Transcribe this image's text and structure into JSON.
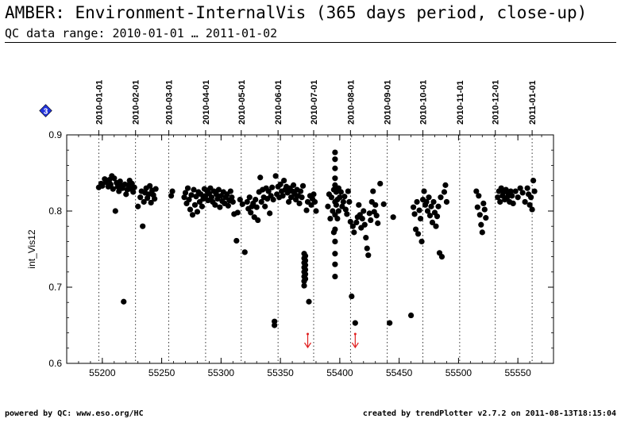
{
  "header": {
    "title": "AMBER: Environment-InternalVis (365 days period, close-up)",
    "subtitle": "QC data range: 2010-01-01 … 2011-01-02"
  },
  "footer": {
    "left": "powered by QC: www.eso.org/HC",
    "right": "created by trendPlotter v2.7.2 on 2011-08-13T18:15:04"
  },
  "badge": {
    "label": "3",
    "color": "#2233dd"
  },
  "chart_data": {
    "type": "scatter",
    "ylabel": "int_Vis12",
    "xlim": [
      55170,
      55580
    ],
    "ylim": [
      0.6,
      0.9
    ],
    "x_ticks": [
      55200,
      55250,
      55300,
      55350,
      55400,
      55450,
      55500,
      55550
    ],
    "y_ticks": [
      0.6,
      0.7,
      0.8,
      0.9
    ],
    "grid": "vertical month markers (dotted)",
    "date_markers": [
      {
        "label": "2010-01-01",
        "x": 55197
      },
      {
        "label": "2010-02-01",
        "x": 55228
      },
      {
        "label": "2010-03-01",
        "x": 55256
      },
      {
        "label": "2010-04-01",
        "x": 55287
      },
      {
        "label": "2010-05-01",
        "x": 55317
      },
      {
        "label": "2010-06-01",
        "x": 55348
      },
      {
        "label": "2010-07-01",
        "x": 55378
      },
      {
        "label": "2010-08-01",
        "x": 55409
      },
      {
        "label": "2010-09-01",
        "x": 55440
      },
      {
        "label": "2010-10-01",
        "x": 55470
      },
      {
        "label": "2010-11-01",
        "x": 55501
      },
      {
        "label": "2010-12-01",
        "x": 55531
      },
      {
        "label": "2011-01-01",
        "x": 55562
      }
    ],
    "outlier_arrows": {
      "color": "#e02020",
      "x": [
        55373,
        55413
      ]
    },
    "series": [
      {
        "marker_color": "#000000",
        "points": [
          [
            55197,
            0.831
          ],
          [
            55199,
            0.836
          ],
          [
            55200,
            0.833
          ],
          [
            55202,
            0.842
          ],
          [
            55203,
            0.838
          ],
          [
            55205,
            0.832
          ],
          [
            55206,
            0.841
          ],
          [
            55207,
            0.835
          ],
          [
            55208,
            0.846
          ],
          [
            55209,
            0.829
          ],
          [
            55210,
            0.843
          ],
          [
            55211,
            0.8
          ],
          [
            55212,
            0.837
          ],
          [
            55213,
            0.832
          ],
          [
            55214,
            0.826
          ],
          [
            55215,
            0.839
          ],
          [
            55216,
            0.833
          ],
          [
            55217,
            0.83
          ],
          [
            55218,
            0.681
          ],
          [
            55219,
            0.835
          ],
          [
            55220,
            0.822
          ],
          [
            55221,
            0.828
          ],
          [
            55222,
            0.834
          ],
          [
            55223,
            0.84
          ],
          [
            55224,
            0.829
          ],
          [
            55225,
            0.836
          ],
          [
            55226,
            0.825
          ],
          [
            55227,
            0.831
          ],
          [
            55230,
            0.806
          ],
          [
            55232,
            0.818
          ],
          [
            55233,
            0.826
          ],
          [
            55234,
            0.78
          ],
          [
            55235,
            0.812
          ],
          [
            55236,
            0.824
          ],
          [
            55237,
            0.83
          ],
          [
            55238,
            0.817
          ],
          [
            55239,
            0.822
          ],
          [
            55240,
            0.833
          ],
          [
            55241,
            0.811
          ],
          [
            55242,
            0.827
          ],
          [
            55243,
            0.821
          ],
          [
            55244,
            0.816
          ],
          [
            55245,
            0.829
          ],
          [
            55258,
            0.82
          ],
          [
            55259,
            0.826
          ],
          [
            55269,
            0.818
          ],
          [
            55270,
            0.824
          ],
          [
            55271,
            0.81
          ],
          [
            55272,
            0.83
          ],
          [
            55273,
            0.815
          ],
          [
            55274,
            0.802
          ],
          [
            55275,
            0.821
          ],
          [
            55276,
            0.795
          ],
          [
            55277,
            0.828
          ],
          [
            55278,
            0.808
          ],
          [
            55279,
            0.819
          ],
          [
            55280,
            0.799
          ],
          [
            55281,
            0.825
          ],
          [
            55282,
            0.812
          ],
          [
            55283,
            0.822
          ],
          [
            55284,
            0.806
          ],
          [
            55285,
            0.816
          ],
          [
            55286,
            0.829
          ],
          [
            55287,
            0.82
          ],
          [
            55288,
            0.827
          ],
          [
            55289,
            0.814
          ],
          [
            55290,
            0.823
          ],
          [
            55291,
            0.83
          ],
          [
            55292,
            0.818
          ],
          [
            55293,
            0.812
          ],
          [
            55294,
            0.826
          ],
          [
            55295,
            0.808
          ],
          [
            55296,
            0.822
          ],
          [
            55297,
            0.816
          ],
          [
            55298,
            0.828
          ],
          [
            55299,
            0.805
          ],
          [
            55300,
            0.82
          ],
          [
            55301,
            0.813
          ],
          [
            55302,
            0.825
          ],
          [
            55303,
            0.81
          ],
          [
            55304,
            0.818
          ],
          [
            55305,
            0.822
          ],
          [
            55306,
            0.807
          ],
          [
            55307,
            0.814
          ],
          [
            55308,
            0.826
          ],
          [
            55309,
            0.818
          ],
          [
            55310,
            0.812
          ],
          [
            55311,
            0.796
          ],
          [
            55313,
            0.761
          ],
          [
            55314,
            0.798
          ],
          [
            55316,
            0.815
          ],
          [
            55318,
            0.809
          ],
          [
            55320,
            0.746
          ],
          [
            55322,
            0.812
          ],
          [
            55323,
            0.803
          ],
          [
            55324,
            0.818
          ],
          [
            55325,
            0.798
          ],
          [
            55326,
            0.806
          ],
          [
            55327,
            0.81
          ],
          [
            55328,
            0.792
          ],
          [
            55329,
            0.815
          ],
          [
            55330,
            0.805
          ],
          [
            55331,
            0.788
          ],
          [
            55332,
            0.825
          ],
          [
            55333,
            0.844
          ],
          [
            55334,
            0.812
          ],
          [
            55335,
            0.828
          ],
          [
            55336,
            0.818
          ],
          [
            55337,
            0.806
          ],
          [
            55338,
            0.83
          ],
          [
            55339,
            0.816
          ],
          [
            55340,
            0.826
          ],
          [
            55341,
            0.797
          ],
          [
            55342,
            0.82
          ],
          [
            55343,
            0.831
          ],
          [
            55344,
            0.815
          ],
          [
            55345,
            0.65
          ],
          [
            55345,
            0.655
          ],
          [
            55346,
            0.846
          ],
          [
            55347,
            0.822
          ],
          [
            55348,
            0.832
          ],
          [
            55349,
            0.818
          ],
          [
            55350,
            0.835
          ],
          [
            55351,
            0.826
          ],
          [
            55352,
            0.82
          ],
          [
            55353,
            0.84
          ],
          [
            55354,
            0.828
          ],
          [
            55355,
            0.832
          ],
          [
            55356,
            0.824
          ],
          [
            55357,
            0.812
          ],
          [
            55358,
            0.83
          ],
          [
            55359,
            0.818
          ],
          [
            55360,
            0.826
          ],
          [
            55361,
            0.834
          ],
          [
            55362,
            0.822
          ],
          [
            55363,
            0.815
          ],
          [
            55364,
            0.828
          ],
          [
            55365,
            0.82
          ],
          [
            55366,
            0.81
          ],
          [
            55367,
            0.826
          ],
          [
            55368,
            0.818
          ],
          [
            55369,
            0.833
          ],
          [
            55370,
            0.744
          ],
          [
            55370,
            0.738
          ],
          [
            55370,
            0.732
          ],
          [
            55370,
            0.726
          ],
          [
            55370,
            0.72
          ],
          [
            55370,
            0.714
          ],
          [
            55370,
            0.708
          ],
          [
            55370,
            0.702
          ],
          [
            55371,
            0.741
          ],
          [
            55371,
            0.735
          ],
          [
            55371,
            0.729
          ],
          [
            55371,
            0.723
          ],
          [
            55371,
            0.717
          ],
          [
            55371,
            0.711
          ],
          [
            55372,
            0.801
          ],
          [
            55373,
            0.812
          ],
          [
            55374,
            0.681
          ],
          [
            55375,
            0.82
          ],
          [
            55376,
            0.808
          ],
          [
            55377,
            0.816
          ],
          [
            55378,
            0.822
          ],
          [
            55379,
            0.812
          ],
          [
            55380,
            0.8
          ],
          [
            55390,
            0.806
          ],
          [
            55391,
            0.822
          ],
          [
            55392,
            0.79
          ],
          [
            55393,
            0.818
          ],
          [
            55394,
            0.8
          ],
          [
            55395,
            0.828
          ],
          [
            55395,
            0.772
          ],
          [
            55396,
            0.877
          ],
          [
            55396,
            0.868
          ],
          [
            55396,
            0.856
          ],
          [
            55396,
            0.843
          ],
          [
            55396,
            0.834
          ],
          [
            55396,
            0.812
          ],
          [
            55396,
            0.795
          ],
          [
            55396,
            0.776
          ],
          [
            55396,
            0.76
          ],
          [
            55396,
            0.744
          ],
          [
            55396,
            0.73
          ],
          [
            55396,
            0.714
          ],
          [
            55397,
            0.825
          ],
          [
            55397,
            0.808
          ],
          [
            55398,
            0.79
          ],
          [
            55398,
            0.815
          ],
          [
            55399,
            0.83
          ],
          [
            55399,
            0.8
          ],
          [
            55400,
            0.818
          ],
          [
            55401,
            0.825
          ],
          [
            55402,
            0.806
          ],
          [
            55403,
            0.812
          ],
          [
            55404,
            0.819
          ],
          [
            55405,
            0.802
          ],
          [
            55406,
            0.796
          ],
          [
            55407,
            0.826
          ],
          [
            55408,
            0.812
          ],
          [
            55409,
            0.786
          ],
          [
            55410,
            0.688
          ],
          [
            55411,
            0.78
          ],
          [
            55412,
            0.772
          ],
          [
            55413,
            0.653
          ],
          [
            55414,
            0.785
          ],
          [
            55415,
            0.792
          ],
          [
            55416,
            0.808
          ],
          [
            55417,
            0.795
          ],
          [
            55418,
            0.778
          ],
          [
            55419,
            0.79
          ],
          [
            55420,
            0.8
          ],
          [
            55421,
            0.782
          ],
          [
            55422,
            0.765
          ],
          [
            55423,
            0.751
          ],
          [
            55424,
            0.742
          ],
          [
            55425,
            0.797
          ],
          [
            55426,
            0.788
          ],
          [
            55427,
            0.812
          ],
          [
            55428,
            0.826
          ],
          [
            55429,
            0.799
          ],
          [
            55430,
            0.808
          ],
          [
            55431,
            0.794
          ],
          [
            55432,
            0.784
          ],
          [
            55434,
            0.836
          ],
          [
            55437,
            0.809
          ],
          [
            55442,
            0.653
          ],
          [
            55445,
            0.792
          ],
          [
            55460,
            0.663
          ],
          [
            55462,
            0.805
          ],
          [
            55463,
            0.796
          ],
          [
            55464,
            0.776
          ],
          [
            55465,
            0.812
          ],
          [
            55466,
            0.77
          ],
          [
            55467,
            0.801
          ],
          [
            55468,
            0.79
          ],
          [
            55469,
            0.76
          ],
          [
            55470,
            0.815
          ],
          [
            55471,
            0.826
          ],
          [
            55472,
            0.808
          ],
          [
            55473,
            0.812
          ],
          [
            55474,
            0.8
          ],
          [
            55475,
            0.818
          ],
          [
            55476,
            0.794
          ],
          [
            55477,
            0.806
          ],
          [
            55478,
            0.785
          ],
          [
            55479,
            0.812
          ],
          [
            55480,
            0.798
          ],
          [
            55481,
            0.78
          ],
          [
            55482,
            0.793
          ],
          [
            55483,
            0.806
          ],
          [
            55484,
            0.745
          ],
          [
            55485,
            0.818
          ],
          [
            55486,
            0.74
          ],
          [
            55488,
            0.825
          ],
          [
            55489,
            0.834
          ],
          [
            55490,
            0.812
          ],
          [
            55515,
            0.826
          ],
          [
            55516,
            0.805
          ],
          [
            55517,
            0.82
          ],
          [
            55518,
            0.795
          ],
          [
            55519,
            0.782
          ],
          [
            55520,
            0.772
          ],
          [
            55521,
            0.81
          ],
          [
            55522,
            0.802
          ],
          [
            55523,
            0.791
          ],
          [
            55533,
            0.818
          ],
          [
            55534,
            0.826
          ],
          [
            55535,
            0.812
          ],
          [
            55536,
            0.83
          ],
          [
            55537,
            0.82
          ],
          [
            55538,
            0.825
          ],
          [
            55539,
            0.815
          ],
          [
            55540,
            0.828
          ],
          [
            55541,
            0.818
          ],
          [
            55542,
            0.822
          ],
          [
            55543,
            0.812
          ],
          [
            55544,
            0.826
          ],
          [
            55545,
            0.82
          ],
          [
            55546,
            0.81
          ],
          [
            55548,
            0.826
          ],
          [
            55550,
            0.818
          ],
          [
            55552,
            0.83
          ],
          [
            55554,
            0.824
          ],
          [
            55556,
            0.812
          ],
          [
            55558,
            0.83
          ],
          [
            55559,
            0.822
          ],
          [
            55560,
            0.808
          ],
          [
            55561,
            0.818
          ],
          [
            55562,
            0.802
          ],
          [
            55563,
            0.84
          ],
          [
            55564,
            0.826
          ]
        ]
      }
    ]
  }
}
